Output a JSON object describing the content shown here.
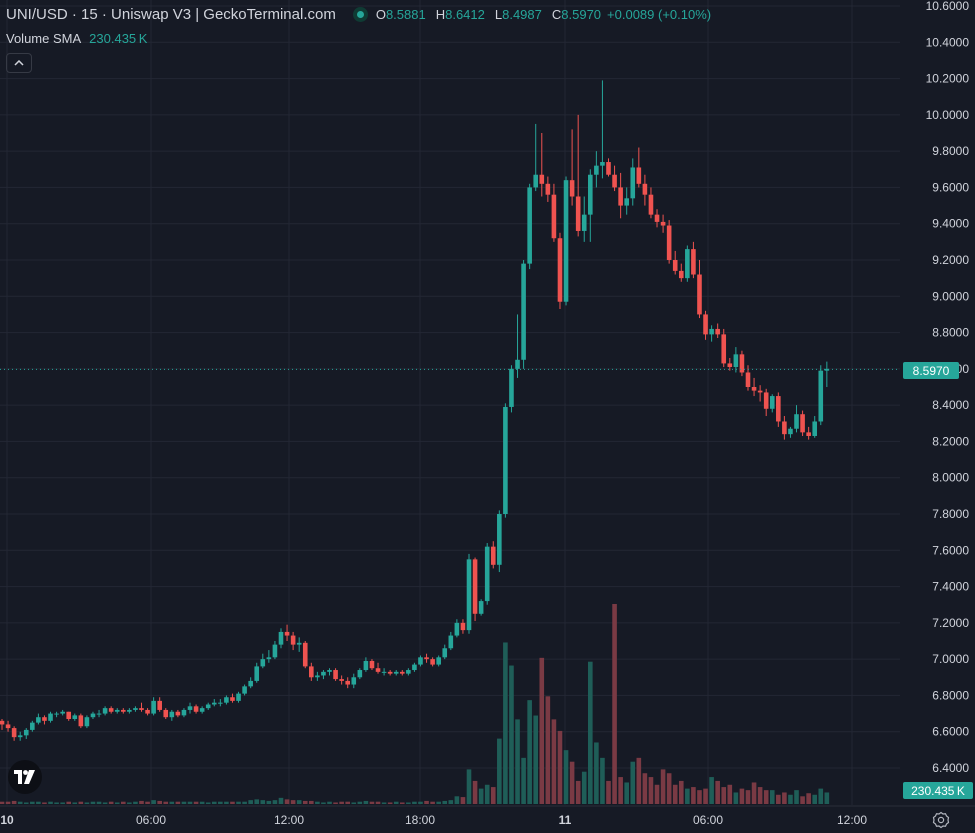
{
  "legend": {
    "title": "UNI/USD · 15 · Uniswap V3 | GeckoTerminal.com",
    "o_label": "O",
    "o_value": "8.5881",
    "h_label": "H",
    "h_value": "8.6412",
    "l_label": "L",
    "l_value": "8.4987",
    "c_label": "C",
    "c_value": "8.5970",
    "change": "+0.0089 (+0.10%)"
  },
  "volume_sma": {
    "label": "Volume SMA",
    "value": "230.435 K"
  },
  "price_tag": "8.5970",
  "volume_tag": "230.435 K",
  "icons": {
    "collapse": "chevron-up-icon",
    "logo": "tradingview-logo-icon",
    "settings": "gear-icon"
  },
  "colors": {
    "background": "#161a25",
    "up": "#26a69a",
    "down": "#ef5350",
    "grid": "#232734",
    "text": "#d1d4dc"
  },
  "chart_data": {
    "type": "candlestick",
    "title": "UNI/USD · 15 · Uniswap V3 | GeckoTerminal.com",
    "y_ticks": [
      "10.6000",
      "10.4000",
      "10.2000",
      "10.0000",
      "9.8000",
      "9.6000",
      "9.4000",
      "9.2000",
      "9.0000",
      "8.8000",
      "8.6000",
      "8.4000",
      "8.2000",
      "8.0000",
      "7.8000",
      "7.6000",
      "7.4000",
      "7.2000",
      "7.0000",
      "6.8000",
      "6.6000",
      "6.4000"
    ],
    "x_ticks": [
      "10",
      "06:00",
      "12:00",
      "18:00",
      "11",
      "06:00",
      "12:00"
    ],
    "ylim": [
      6.4,
      10.6
    ],
    "grid": true,
    "last_price": 8.597,
    "candles": [
      [
        6.66,
        6.67,
        6.61,
        6.64
      ],
      [
        6.64,
        6.66,
        6.6,
        6.62
      ],
      [
        6.62,
        6.63,
        6.55,
        6.57
      ],
      [
        6.57,
        6.6,
        6.55,
        6.58
      ],
      [
        6.58,
        6.62,
        6.56,
        6.61
      ],
      [
        6.61,
        6.66,
        6.6,
        6.65
      ],
      [
        6.65,
        6.7,
        6.64,
        6.68
      ],
      [
        6.68,
        6.69,
        6.64,
        6.66
      ],
      [
        6.66,
        6.71,
        6.65,
        6.7
      ],
      [
        6.7,
        6.71,
        6.68,
        6.7
      ],
      [
        6.7,
        6.72,
        6.69,
        6.71
      ],
      [
        6.71,
        6.71,
        6.66,
        6.67
      ],
      [
        6.67,
        6.7,
        6.66,
        6.69
      ],
      [
        6.69,
        6.7,
        6.62,
        6.63
      ],
      [
        6.63,
        6.69,
        6.62,
        6.68
      ],
      [
        6.68,
        6.71,
        6.67,
        6.7
      ],
      [
        6.7,
        6.72,
        6.68,
        6.7
      ],
      [
        6.7,
        6.74,
        6.69,
        6.73
      ],
      [
        6.73,
        6.74,
        6.7,
        6.71
      ],
      [
        6.71,
        6.73,
        6.7,
        6.72
      ],
      [
        6.72,
        6.73,
        6.7,
        6.71
      ],
      [
        6.71,
        6.73,
        6.7,
        6.72
      ],
      [
        6.72,
        6.74,
        6.71,
        6.73
      ],
      [
        6.73,
        6.76,
        6.71,
        6.72
      ],
      [
        6.72,
        6.73,
        6.69,
        6.7
      ],
      [
        6.7,
        6.79,
        6.69,
        6.77
      ],
      [
        6.77,
        6.79,
        6.71,
        6.72
      ],
      [
        6.72,
        6.73,
        6.67,
        6.68
      ],
      [
        6.68,
        6.72,
        6.66,
        6.71
      ],
      [
        6.71,
        6.72,
        6.68,
        6.69
      ],
      [
        6.69,
        6.73,
        6.68,
        6.72
      ],
      [
        6.72,
        6.76,
        6.7,
        6.74
      ],
      [
        6.74,
        6.75,
        6.7,
        6.71
      ],
      [
        6.71,
        6.74,
        6.7,
        6.73
      ],
      [
        6.73,
        6.76,
        6.72,
        6.75
      ],
      [
        6.75,
        6.78,
        6.74,
        6.76
      ],
      [
        6.76,
        6.78,
        6.74,
        6.76
      ],
      [
        6.76,
        6.8,
        6.75,
        6.79
      ],
      [
        6.79,
        6.81,
        6.76,
        6.77
      ],
      [
        6.77,
        6.82,
        6.76,
        6.81
      ],
      [
        6.81,
        6.86,
        6.8,
        6.85
      ],
      [
        6.85,
        6.9,
        6.84,
        6.88
      ],
      [
        6.88,
        6.98,
        6.87,
        6.96
      ],
      [
        6.96,
        7.03,
        6.95,
        7.0
      ],
      [
        7.0,
        7.05,
        6.98,
        7.01
      ],
      [
        7.01,
        7.1,
        7.0,
        7.08
      ],
      [
        7.08,
        7.17,
        7.06,
        7.15
      ],
      [
        7.15,
        7.19,
        7.1,
        7.13
      ],
      [
        7.13,
        7.15,
        7.05,
        7.08
      ],
      [
        7.08,
        7.12,
        7.04,
        7.09
      ],
      [
        7.09,
        7.1,
        6.95,
        6.96
      ],
      [
        6.96,
        6.98,
        6.88,
        6.9
      ],
      [
        6.9,
        6.93,
        6.88,
        6.91
      ],
      [
        6.91,
        6.94,
        6.89,
        6.93
      ],
      [
        6.93,
        6.95,
        6.91,
        6.94
      ],
      [
        6.94,
        6.95,
        6.88,
        6.89
      ],
      [
        6.89,
        6.91,
        6.86,
        6.88
      ],
      [
        6.88,
        6.9,
        6.84,
        6.86
      ],
      [
        6.86,
        6.92,
        6.84,
        6.9
      ],
      [
        6.9,
        6.95,
        6.89,
        6.94
      ],
      [
        6.94,
        7.01,
        6.93,
        6.99
      ],
      [
        6.99,
        7.0,
        6.94,
        6.95
      ],
      [
        6.95,
        6.98,
        6.92,
        6.93
      ],
      [
        6.93,
        6.95,
        6.91,
        6.93
      ],
      [
        6.93,
        6.94,
        6.91,
        6.92
      ],
      [
        6.92,
        6.94,
        6.91,
        6.93
      ],
      [
        6.93,
        6.94,
        6.91,
        6.92
      ],
      [
        6.92,
        6.95,
        6.91,
        6.94
      ],
      [
        6.94,
        6.98,
        6.93,
        6.97
      ],
      [
        6.97,
        7.02,
        6.96,
        7.01
      ],
      [
        7.01,
        7.03,
        6.98,
        7.0
      ],
      [
        7.0,
        7.01,
        6.96,
        6.97
      ],
      [
        6.97,
        7.02,
        6.96,
        7.01
      ],
      [
        7.01,
        7.08,
        7.0,
        7.06
      ],
      [
        7.06,
        7.15,
        7.05,
        7.13
      ],
      [
        7.13,
        7.22,
        7.12,
        7.2
      ],
      [
        7.2,
        7.22,
        7.14,
        7.16
      ],
      [
        7.16,
        7.58,
        7.14,
        7.55
      ],
      [
        7.55,
        7.56,
        7.21,
        7.25
      ],
      [
        7.25,
        7.33,
        7.24,
        7.32
      ],
      [
        7.32,
        7.64,
        7.3,
        7.62
      ],
      [
        7.62,
        7.65,
        7.5,
        7.52
      ],
      [
        7.52,
        7.82,
        7.48,
        7.8
      ],
      [
        7.8,
        8.41,
        7.78,
        8.39
      ],
      [
        8.39,
        8.62,
        8.36,
        8.6
      ],
      [
        8.6,
        8.9,
        8.55,
        8.65
      ],
      [
        8.65,
        9.2,
        8.6,
        9.18
      ],
      [
        9.18,
        9.62,
        9.15,
        9.6
      ],
      [
        9.6,
        9.95,
        9.58,
        9.67
      ],
      [
        9.67,
        9.9,
        9.55,
        9.62
      ],
      [
        9.62,
        9.66,
        9.52,
        9.56
      ],
      [
        9.56,
        9.62,
        9.3,
        9.32
      ],
      [
        9.32,
        9.35,
        8.93,
        8.97
      ],
      [
        8.97,
        9.66,
        8.95,
        9.64
      ],
      [
        9.64,
        9.92,
        9.5,
        9.55
      ],
      [
        9.55,
        10.0,
        9.33,
        9.36
      ],
      [
        9.36,
        9.55,
        9.3,
        9.45
      ],
      [
        9.45,
        9.7,
        9.3,
        9.67
      ],
      [
        9.67,
        9.8,
        9.6,
        9.72
      ],
      [
        9.72,
        10.19,
        9.65,
        9.74
      ],
      [
        9.74,
        9.76,
        9.66,
        9.67
      ],
      [
        9.67,
        9.72,
        9.58,
        9.6
      ],
      [
        9.6,
        9.68,
        9.43,
        9.5
      ],
      [
        9.5,
        9.6,
        9.45,
        9.54
      ],
      [
        9.54,
        9.76,
        9.5,
        9.71
      ],
      [
        9.71,
        9.82,
        9.6,
        9.62
      ],
      [
        9.62,
        9.67,
        9.5,
        9.56
      ],
      [
        9.56,
        9.6,
        9.43,
        9.45
      ],
      [
        9.45,
        9.48,
        9.38,
        9.41
      ],
      [
        9.41,
        9.45,
        9.35,
        9.39
      ],
      [
        9.39,
        9.42,
        9.18,
        9.2
      ],
      [
        9.2,
        9.25,
        9.12,
        9.14
      ],
      [
        9.14,
        9.18,
        9.08,
        9.1
      ],
      [
        9.1,
        9.28,
        9.08,
        9.26
      ],
      [
        9.26,
        9.3,
        9.1,
        9.12
      ],
      [
        9.12,
        9.2,
        8.88,
        8.9
      ],
      [
        8.9,
        8.92,
        8.76,
        8.79
      ],
      [
        8.79,
        8.84,
        8.75,
        8.82
      ],
      [
        8.82,
        8.85,
        8.77,
        8.79
      ],
      [
        8.79,
        8.82,
        8.61,
        8.63
      ],
      [
        8.63,
        8.66,
        8.59,
        8.61
      ],
      [
        8.61,
        8.72,
        8.58,
        8.68
      ],
      [
        8.68,
        8.7,
        8.56,
        8.58
      ],
      [
        8.58,
        8.62,
        8.48,
        8.5
      ],
      [
        8.5,
        8.55,
        8.45,
        8.48
      ],
      [
        8.48,
        8.51,
        8.42,
        8.47
      ],
      [
        8.47,
        8.49,
        8.34,
        8.38
      ],
      [
        8.38,
        8.46,
        8.36,
        8.45
      ],
      [
        8.45,
        8.47,
        8.28,
        8.31
      ],
      [
        8.31,
        8.34,
        8.21,
        8.24
      ],
      [
        8.24,
        8.28,
        8.22,
        8.27
      ],
      [
        8.27,
        8.4,
        8.25,
        8.35
      ],
      [
        8.35,
        8.37,
        8.23,
        8.25
      ],
      [
        8.25,
        8.28,
        8.21,
        8.23
      ],
      [
        8.23,
        8.34,
        8.22,
        8.31
      ],
      [
        8.31,
        8.62,
        8.29,
        8.59
      ],
      [
        8.59,
        8.64,
        8.5,
        8.6
      ]
    ],
    "volumes": [
      3,
      3,
      4,
      3,
      2,
      3,
      3,
      2,
      3,
      2,
      2,
      3,
      2,
      3,
      2,
      3,
      3,
      2,
      3,
      2,
      3,
      2,
      3,
      4,
      3,
      5,
      4,
      3,
      3,
      3,
      3,
      3,
      3,
      3,
      2,
      3,
      3,
      3,
      3,
      3,
      3,
      5,
      6,
      5,
      4,
      5,
      8,
      6,
      5,
      5,
      4,
      4,
      3,
      2,
      3,
      2,
      3,
      3,
      2,
      3,
      4,
      3,
      3,
      2,
      2,
      3,
      2,
      2,
      3,
      3,
      4,
      3,
      3,
      4,
      5,
      10,
      9,
      45,
      30,
      20,
      25,
      22,
      85,
      210,
      180,
      110,
      60,
      135,
      115,
      190,
      140,
      110,
      95,
      70,
      55,
      30,
      42,
      185,
      80,
      60,
      30,
      260,
      35,
      28,
      55,
      60,
      40,
      35,
      25,
      45,
      40,
      25,
      30,
      20,
      22,
      18,
      20,
      35,
      30,
      22,
      25,
      15,
      20,
      18,
      28,
      22,
      18,
      18,
      12,
      15,
      12,
      18,
      10,
      14,
      12,
      20,
      15,
      14,
      15
    ]
  }
}
